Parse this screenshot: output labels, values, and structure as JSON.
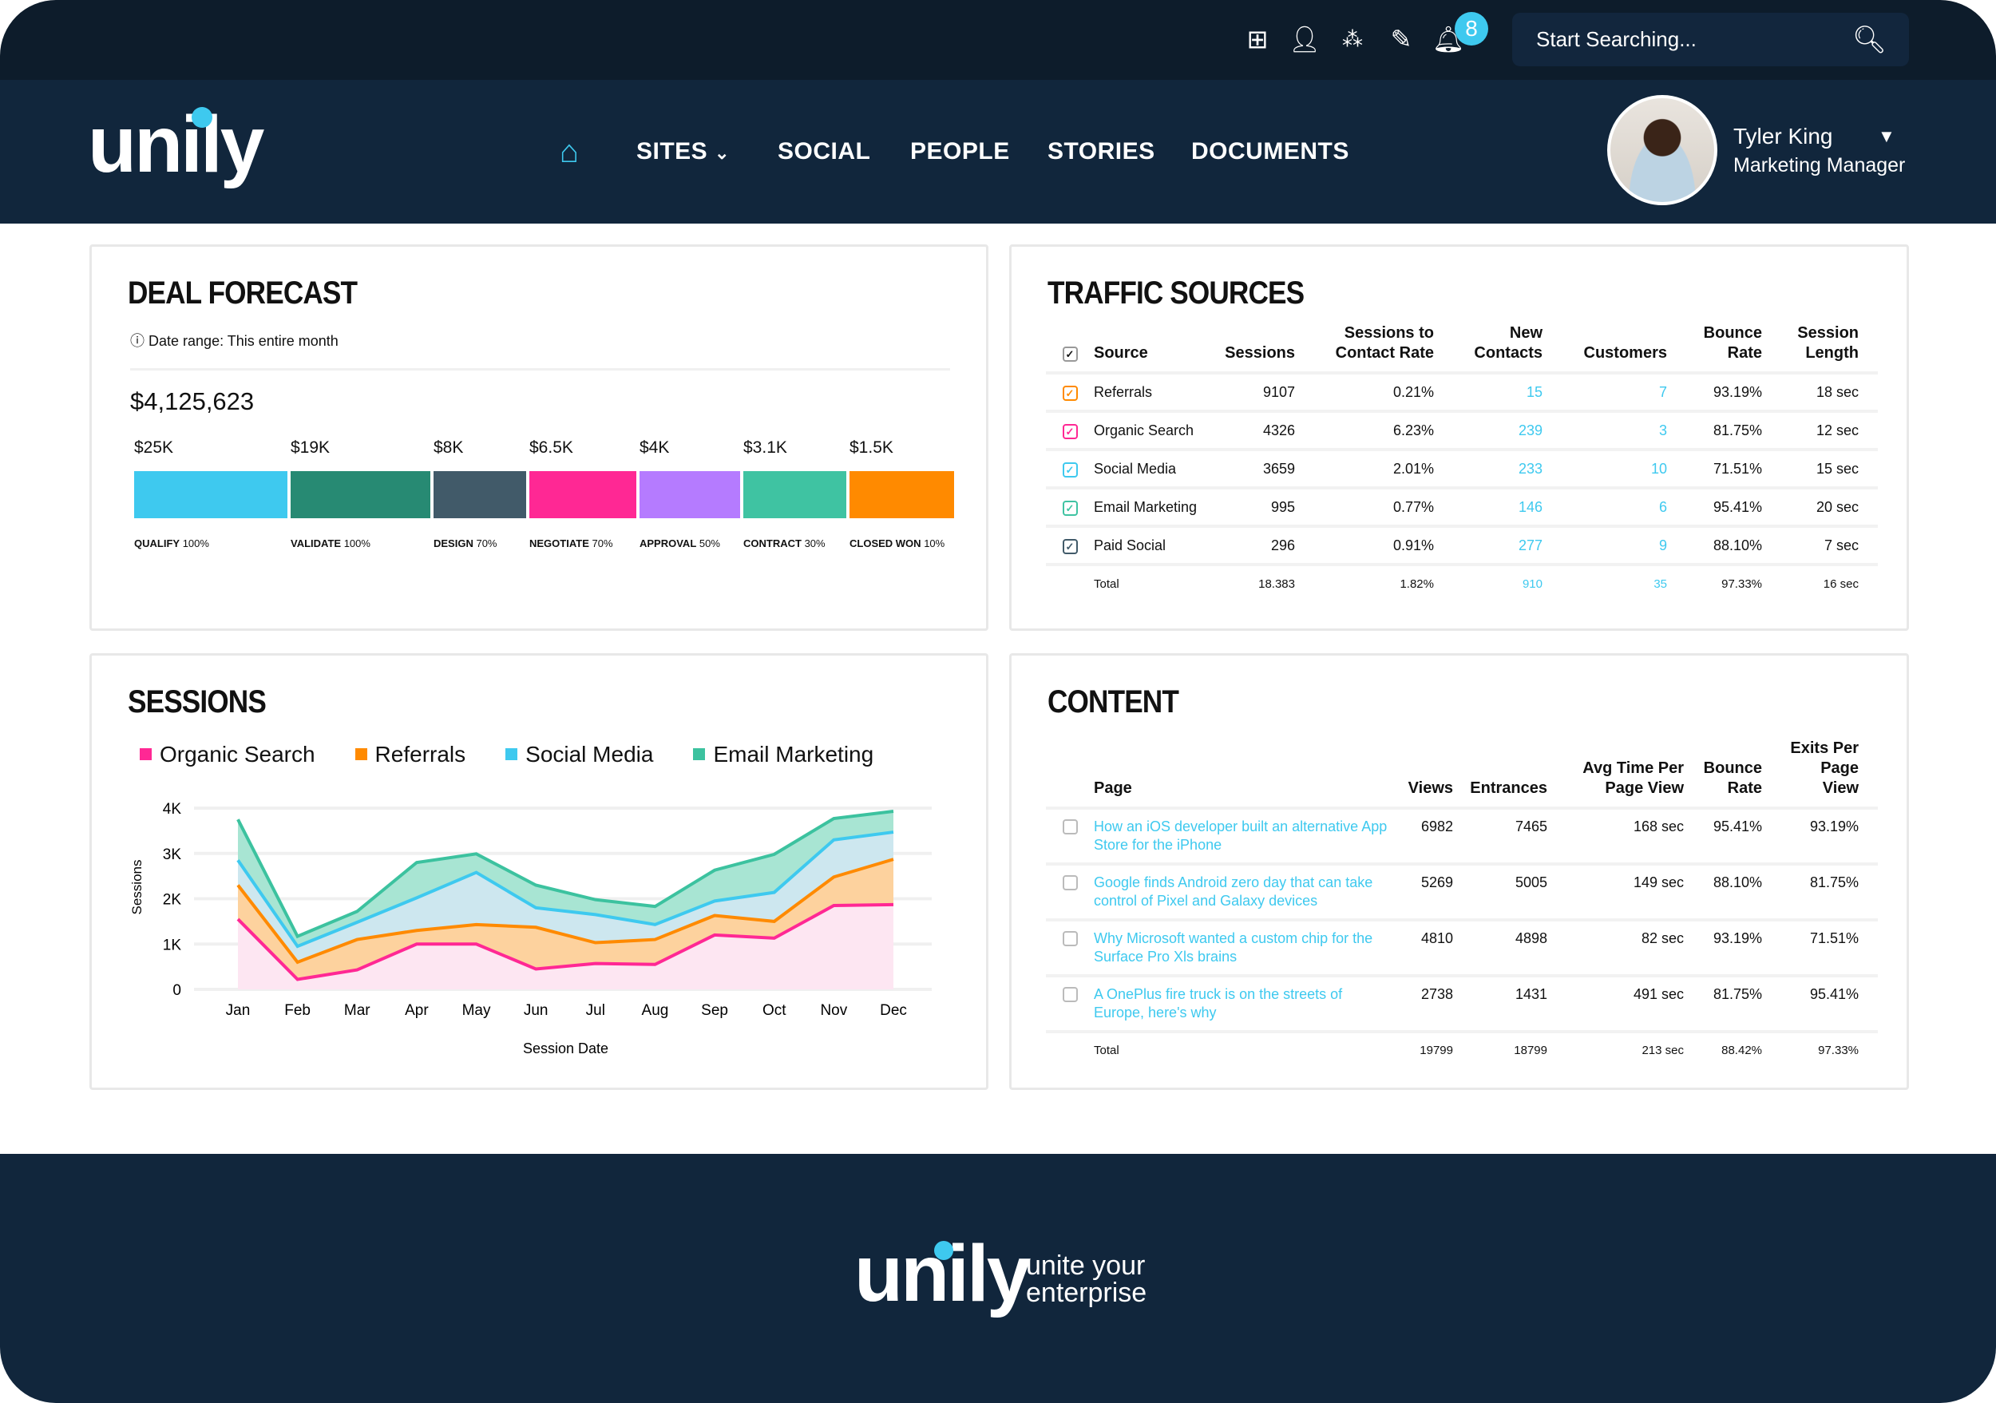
{
  "topbar": {
    "icons": [
      "windows-icon",
      "user-icon",
      "stars-icon",
      "edit-icon",
      "bell-icon"
    ],
    "notification_count": "8",
    "search_placeholder": "Start Searching..."
  },
  "nav": {
    "logo": "unily",
    "items": [
      {
        "label": "SITES"
      },
      {
        "label": "SOCIAL"
      },
      {
        "label": "PEOPLE"
      },
      {
        "label": "STORIES"
      },
      {
        "label": "DOCUMENTS"
      }
    ]
  },
  "user": {
    "name": "Tyler King",
    "role": "Marketing Manager"
  },
  "deal_forecast": {
    "title": "DEAL FORECAST",
    "date_range": "Date range: This entire month",
    "total": "$4,125,623",
    "stages": [
      {
        "value": "$25K",
        "name": "QUALIFY",
        "pct": "100%",
        "color": "#3ec9ef"
      },
      {
        "value": "$19K",
        "name": "VALIDATE",
        "pct": "100%",
        "color": "#278a73"
      },
      {
        "value": "$8K",
        "name": "DESIGN",
        "pct": "70%",
        "color": "#415a69"
      },
      {
        "value": "$6.5K",
        "name": "NEGOTIATE",
        "pct": "70%",
        "color": "#ff2894"
      },
      {
        "value": "$4K",
        "name": "APPROVAL",
        "pct": "50%",
        "color": "#b57bff"
      },
      {
        "value": "$3.1K",
        "name": "CONTRACT",
        "pct": "30%",
        "color": "#3fc3a2"
      },
      {
        "value": "$1.5K",
        "name": "CLOSED WON",
        "pct": "10%",
        "color": "#ff8a00"
      }
    ]
  },
  "traffic": {
    "title": "TRAFFIC SOURCES",
    "headers": [
      "Source",
      "Sessions",
      "Sessions to Contact Rate",
      "New Contacts",
      "Customers",
      "Bounce Rate",
      "Session Length"
    ],
    "rows": [
      {
        "source": "Referrals",
        "sessions": "9107",
        "rate": "0.21%",
        "contacts": "15",
        "customers": "7",
        "bounce": "93.19%",
        "length": "18 sec",
        "color": "#ff8a00"
      },
      {
        "source": "Organic Search",
        "sessions": "4326",
        "rate": "6.23%",
        "contacts": "239",
        "customers": "3",
        "bounce": "81.75%",
        "length": "12 sec",
        "color": "#ff2894"
      },
      {
        "source": "Social Media",
        "sessions": "3659",
        "rate": "2.01%",
        "contacts": "233",
        "customers": "10",
        "bounce": "71.51%",
        "length": "15 sec",
        "color": "#3ec9ef"
      },
      {
        "source": "Email Marketing",
        "sessions": "995",
        "rate": "0.77%",
        "contacts": "146",
        "customers": "6",
        "bounce": "95.41%",
        "length": "20 sec",
        "color": "#3fc3a2"
      },
      {
        "source": "Paid Social",
        "sessions": "296",
        "rate": "0.91%",
        "contacts": "277",
        "customers": "9",
        "bounce": "88.10%",
        "length": "7 sec",
        "color": "#415a69"
      }
    ],
    "total": {
      "label": "Total",
      "sessions": "18.383",
      "rate": "1.82%",
      "contacts": "910",
      "customers": "35",
      "bounce": "97.33%",
      "length": "16 sec"
    }
  },
  "sessions": {
    "title": "SESSIONS",
    "chart_data": {
      "type": "area",
      "stacked": true,
      "categories": [
        "Jan",
        "Feb",
        "Mar",
        "Apr",
        "May",
        "Jun",
        "Jul",
        "Aug",
        "Sep",
        "Oct",
        "Nov",
        "Dec"
      ],
      "xlabel": "Session Date",
      "ylabel": "Sessions",
      "ylim": [
        0,
        4000
      ],
      "yticks": [
        "0",
        "1K",
        "2K",
        "3K",
        "4K"
      ],
      "grid": true,
      "legend": "top",
      "series": [
        {
          "name": "Organic Search",
          "color": "#ff2894",
          "fill": "#fde6f2",
          "values": [
            1550,
            220,
            430,
            1000,
            1000,
            450,
            570,
            550,
            1200,
            1130,
            1850,
            1870
          ]
        },
        {
          "name": "Referrals",
          "color": "#ff8a00",
          "fill": "#fdd29e",
          "values": [
            750,
            380,
            670,
            300,
            430,
            920,
            460,
            550,
            430,
            370,
            630,
            1000
          ]
        },
        {
          "name": "Social Media",
          "color": "#3ec9ef",
          "fill": "#cde7ef",
          "values": [
            550,
            350,
            380,
            720,
            1150,
            430,
            620,
            330,
            320,
            640,
            820,
            600
          ]
        },
        {
          "name": "Email Marketing",
          "color": "#3cc29f",
          "fill": "#a8e5d3",
          "values": [
            900,
            220,
            240,
            780,
            410,
            500,
            330,
            400,
            680,
            840,
            470,
            460
          ]
        }
      ]
    }
  },
  "content": {
    "title": "CONTENT",
    "headers": [
      "Page",
      "Views",
      "Entrances",
      "Avg Time Per Page View",
      "Bounce Rate",
      "Exits Per Page View"
    ],
    "rows": [
      {
        "page": "How an iOS developer built an alternative App Store for the iPhone",
        "views": "6982",
        "entrances": "7465",
        "avg": "168 sec",
        "bounce": "95.41%",
        "exits": "93.19%"
      },
      {
        "page": "Google finds Android zero day that can take control of Pixel and Galaxy devices",
        "views": "5269",
        "entrances": "5005",
        "avg": "149 sec",
        "bounce": "88.10%",
        "exits": "81.75%"
      },
      {
        "page": "Why Microsoft wanted a custom chip for the Surface Pro Xls brains",
        "views": "4810",
        "entrances": "4898",
        "avg": "82 sec",
        "bounce": "93.19%",
        "exits": "71.51%"
      },
      {
        "page": "A OnePlus fire truck is on the streets of Europe, here's why",
        "views": "2738",
        "entrances": "1431",
        "avg": "491 sec",
        "bounce": "81.75%",
        "exits": "95.41%"
      }
    ],
    "total": {
      "label": "Total",
      "views": "19799",
      "entrances": "18799",
      "avg": "213 sec",
      "bounce": "88.42%",
      "exits": "97.33%"
    }
  },
  "footer": {
    "logo": "unily",
    "tagline_1": "unite your",
    "tagline_2": "enterprise"
  }
}
